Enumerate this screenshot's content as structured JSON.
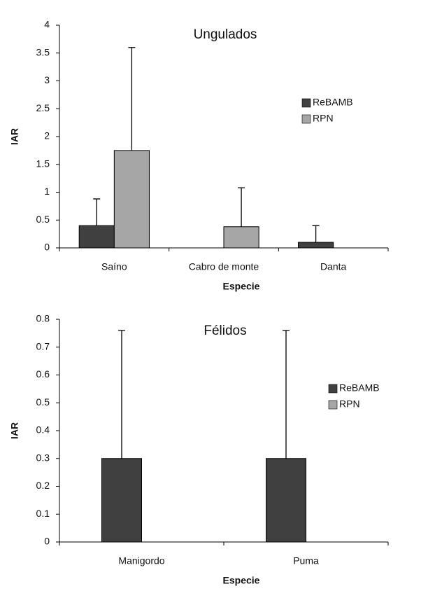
{
  "chart_data": [
    {
      "type": "bar",
      "title": "Ungulados",
      "x_label": "Especie",
      "y_label": "IAR",
      "categories": [
        "Saíno",
        "Cabro de monte",
        "Danta"
      ],
      "series": [
        {
          "name": "ReBAMB",
          "color": "#404040",
          "values": [
            0.4,
            0,
            0.1
          ],
          "errors": [
            0.48,
            null,
            0.3
          ]
        },
        {
          "name": "RPN",
          "color": "#a6a6a6",
          "values": [
            1.75,
            0.38,
            0
          ],
          "errors": [
            1.85,
            0.7,
            null
          ]
        }
      ],
      "ylim": [
        0,
        4
      ],
      "yticks": [
        0,
        0.5,
        1,
        1.5,
        2,
        2.5,
        3,
        3.5,
        4
      ],
      "grid": false,
      "legend": "right"
    },
    {
      "type": "bar",
      "title": "Félidos",
      "x_label": "Especie",
      "y_label": "IAR",
      "categories": [
        "Manigordo",
        "Puma"
      ],
      "series": [
        {
          "name": "ReBAMB",
          "color": "#404040",
          "values": [
            0.3,
            0.3
          ],
          "errors": [
            0.46,
            0.46
          ]
        },
        {
          "name": "RPN",
          "color": "#a6a6a6",
          "values": [
            0,
            0
          ],
          "errors": [
            null,
            null
          ]
        }
      ],
      "ylim": [
        0,
        0.8
      ],
      "yticks": [
        0,
        0.1,
        0.2,
        0.3,
        0.4,
        0.5,
        0.6,
        0.7,
        0.8
      ],
      "grid": false,
      "legend": "right"
    }
  ]
}
